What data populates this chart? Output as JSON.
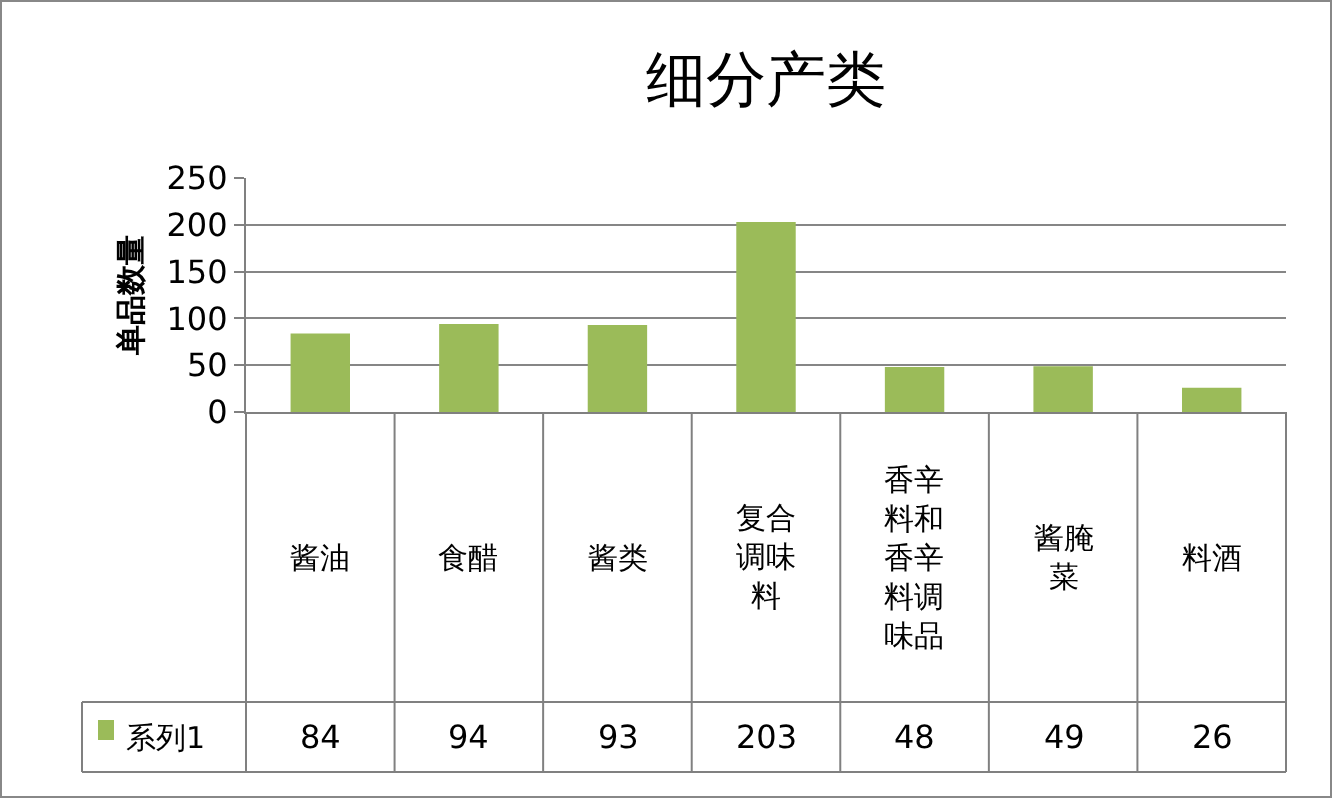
{
  "chart_data": {
    "type": "bar",
    "title": "细分产类",
    "ylabel": "单品数量",
    "categories": [
      "酱油",
      "食醋",
      "酱类",
      "复合调味料",
      "香辛料和香辛料调味品",
      "酱腌菜",
      "料酒"
    ],
    "series": [
      {
        "name": "系列1",
        "color": "#9bbb59",
        "values": [
          84,
          94,
          93,
          203,
          48,
          49,
          26
        ]
      }
    ],
    "ylim": [
      0,
      250
    ],
    "yticks": [
      0,
      50,
      100,
      150,
      200,
      250
    ],
    "grid": "y",
    "data_labels": true
  }
}
